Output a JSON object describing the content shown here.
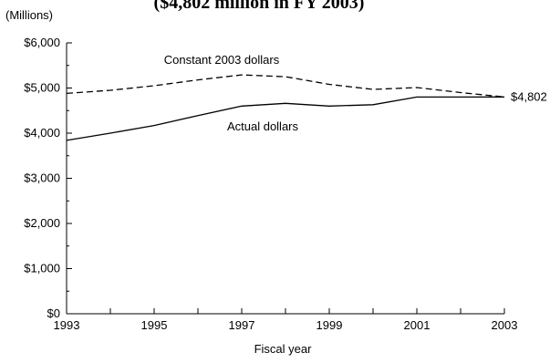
{
  "chart_data": {
    "type": "line",
    "title": "($4,802 million in FY 2003)",
    "unit_label": "(Millions)",
    "xlabel": "Fiscal year",
    "ylabel": "",
    "xlim": [
      1993,
      2003
    ],
    "ylim": [
      0,
      6000
    ],
    "x_ticks": [
      1993,
      1995,
      1997,
      1999,
      2001,
      2003
    ],
    "y_ticks": [
      0,
      1000,
      2000,
      3000,
      4000,
      5000,
      6000
    ],
    "y_tick_labels": [
      "$0",
      "$1,000",
      "$2,000",
      "$3,000",
      "$4,000",
      "$5,000",
      "$6,000"
    ],
    "grid": false,
    "legend": "none",
    "series": [
      {
        "name": "Constant 2003 dollars",
        "style": "dashed",
        "color": "#000000",
        "x": [
          1993,
          1994,
          1995,
          1996,
          1997,
          1998,
          1999,
          2000,
          2001,
          2002,
          2003
        ],
        "values": [
          4880,
          4950,
          5050,
          5180,
          5290,
          5250,
          5080,
          4970,
          5010,
          4900,
          4802
        ]
      },
      {
        "name": "Actual dollars",
        "style": "solid",
        "color": "#000000",
        "x": [
          1993,
          1994,
          1995,
          1996,
          1997,
          1998,
          1999,
          2000,
          2001,
          2002,
          2003
        ],
        "values": [
          3840,
          4000,
          4170,
          4390,
          4600,
          4660,
          4600,
          4630,
          4800,
          4800,
          4802
        ]
      }
    ],
    "annotations": [
      {
        "text": "$4,802",
        "x": 2003,
        "y": 4802
      }
    ]
  }
}
